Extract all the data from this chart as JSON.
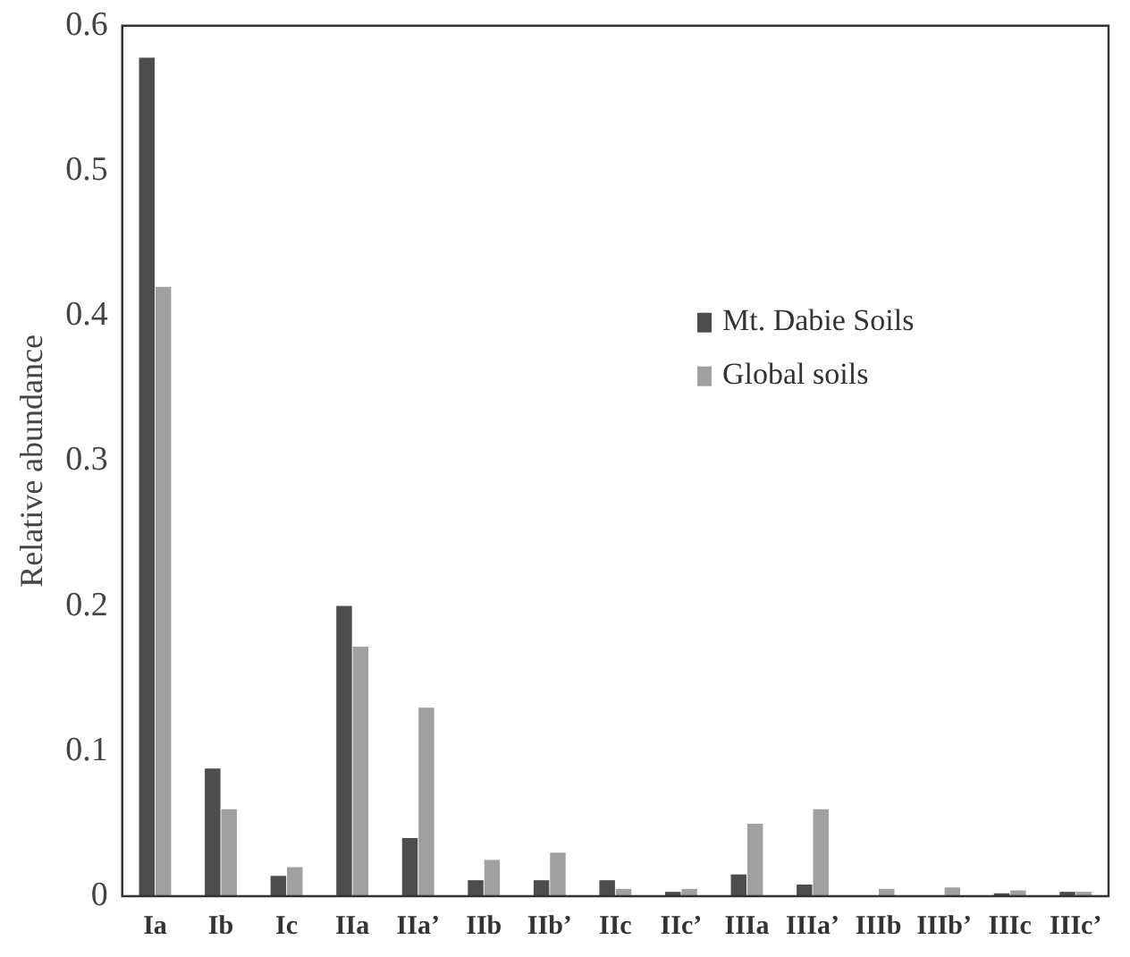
{
  "chart_data": {
    "type": "bar",
    "ylabel": "Relative abundance",
    "categories": [
      "Ia",
      "Ib",
      "Ic",
      "IIa",
      "IIa’",
      "IIb",
      "IIb’",
      "IIc",
      "IIc’",
      "IIIa",
      "IIIa’",
      "IIIb",
      "IIIb’",
      "IIIc",
      "IIIc’"
    ],
    "series": [
      {
        "name": "Mt. Dabie Soils",
        "color": "#4d4d4d",
        "values": [
          0.578,
          0.088,
          0.014,
          0.2,
          0.04,
          0.011,
          0.011,
          0.011,
          0.003,
          0.015,
          0.008,
          0,
          0,
          0.002,
          0.003
        ]
      },
      {
        "name": "Global soils",
        "color": "#a0a0a0",
        "values": [
          0.42,
          0.06,
          0.02,
          0.172,
          0.13,
          0.025,
          0.03,
          0.005,
          0.005,
          0.05,
          0.06,
          0.005,
          0.006,
          0.004,
          0.003
        ]
      }
    ],
    "ylim": [
      0,
      0.6
    ],
    "yticks": [
      0,
      0.1,
      0.2,
      0.3,
      0.4,
      0.5,
      0.6
    ],
    "grid": false,
    "legend": "right"
  }
}
